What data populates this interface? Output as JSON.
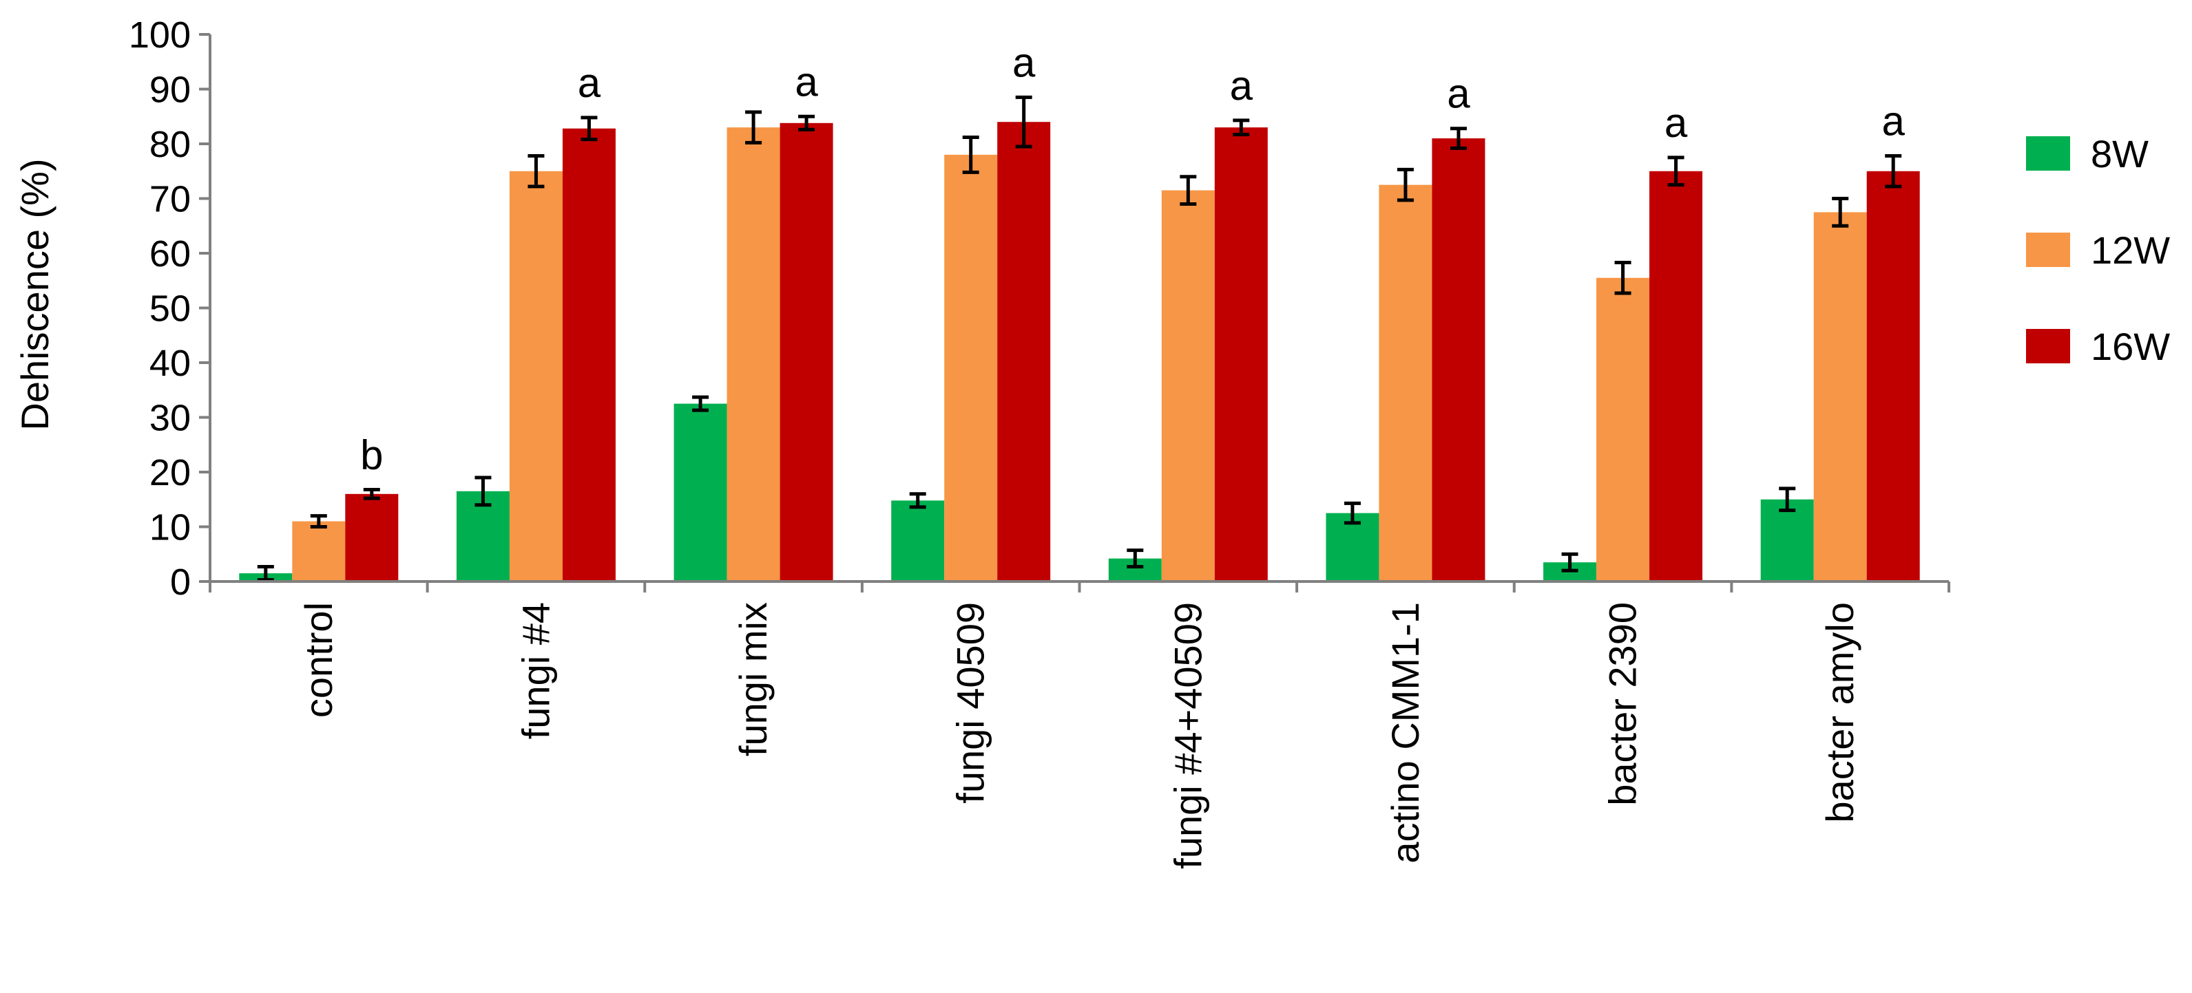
{
  "chart_data": {
    "type": "bar",
    "title": "",
    "xlabel": "",
    "ylabel": "Dehiscence (%)",
    "ylim": [
      0,
      100
    ],
    "yticks": [
      0,
      10,
      20,
      30,
      40,
      50,
      60,
      70,
      80,
      90,
      100
    ],
    "grid": false,
    "legend_position": "right",
    "categories": [
      "control",
      "fungi #4",
      "fungi mix",
      "fungi 40509",
      "fungi #4+40509",
      "actino CMM1-1",
      "bacter 2390",
      "bacter amylo"
    ],
    "series": [
      {
        "name": "8W",
        "color": "#00b050",
        "values": [
          1.5,
          16.5,
          32.5,
          14.8,
          4.2,
          12.5,
          3.5,
          15.0
        ],
        "errors": [
          1.2,
          2.5,
          1.2,
          1.2,
          1.5,
          1.8,
          1.5,
          2.0
        ]
      },
      {
        "name": "12W",
        "color": "#f79646",
        "values": [
          11.0,
          75.0,
          83.0,
          78.0,
          71.5,
          72.5,
          55.5,
          67.5
        ],
        "errors": [
          1.0,
          2.8,
          2.8,
          3.2,
          2.5,
          2.8,
          2.8,
          2.5
        ]
      },
      {
        "name": "16W",
        "color": "#c00000",
        "values": [
          16.0,
          82.8,
          83.8,
          84.0,
          83.0,
          81.0,
          75.0,
          75.0
        ],
        "errors": [
          0.8,
          2.0,
          1.2,
          4.5,
          1.3,
          1.8,
          2.5,
          2.8
        ]
      }
    ],
    "significance_labels": [
      "b",
      "a",
      "a",
      "a",
      "a",
      "a",
      "a",
      "a"
    ]
  }
}
